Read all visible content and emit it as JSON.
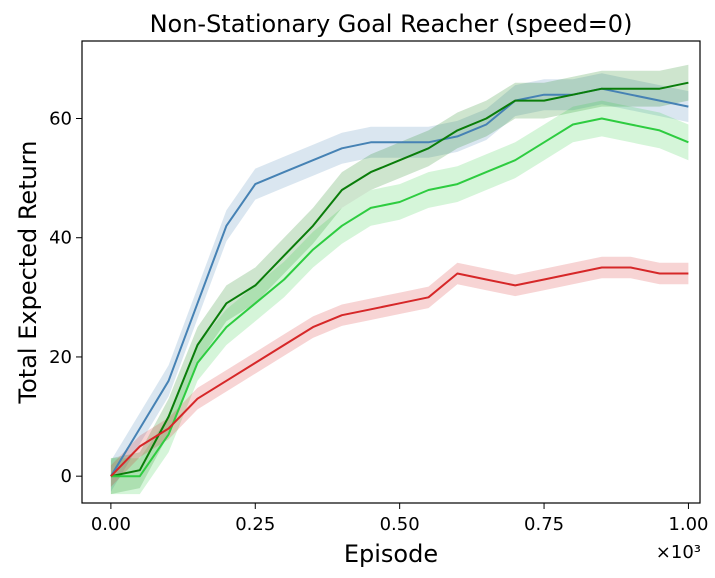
{
  "chart_data": {
    "type": "line",
    "title": "Non-Stationary Goal Reacher (speed=0)",
    "xlabel": "Episode",
    "ylabel": "Total Expected Return",
    "x_multiplier_label": "×10³",
    "xlim": [
      -0.05,
      1.02
    ],
    "ylim": [
      -4.5,
      73
    ],
    "xticks": [
      0.0,
      0.25,
      0.5,
      0.75,
      1.0
    ],
    "xtick_labels": [
      "0.00",
      "0.25",
      "0.50",
      "0.75",
      "1.00"
    ],
    "yticks": [
      0,
      20,
      40,
      60
    ],
    "ytick_labels": [
      "0",
      "20",
      "40",
      "60"
    ],
    "grid": false,
    "legend": "none",
    "x": [
      0.0,
      0.05,
      0.1,
      0.15,
      0.2,
      0.25,
      0.3,
      0.35,
      0.4,
      0.45,
      0.5,
      0.55,
      0.6,
      0.65,
      0.7,
      0.75,
      0.8,
      0.85,
      0.9,
      0.95,
      1.0
    ],
    "series": [
      {
        "color": "#4682b4",
        "band_width": 2.6,
        "values": [
          0,
          8,
          16,
          29,
          42,
          49,
          51,
          53,
          55,
          56,
          56,
          56,
          57,
          59,
          63,
          64,
          64,
          65,
          64,
          63,
          62
        ]
      },
      {
        "color": "#0a7d0a",
        "band_width": 3.0,
        "values": [
          0,
          1,
          10,
          22,
          29,
          32,
          37,
          42,
          48,
          51,
          53,
          55,
          58,
          60,
          63,
          63,
          64,
          65,
          65,
          65,
          66
        ]
      },
      {
        "color": "#2ecc40",
        "band_width": 3.0,
        "values": [
          0,
          0,
          7,
          19,
          25,
          29,
          33,
          38,
          42,
          45,
          46,
          48,
          49,
          51,
          53,
          56,
          59,
          60,
          59,
          58,
          56
        ]
      },
      {
        "color": "#d62728",
        "band_width": 1.8,
        "values": [
          0,
          5,
          8,
          13,
          16,
          19,
          22,
          25,
          27,
          28,
          29,
          30,
          34,
          33,
          32,
          33,
          34,
          35,
          35,
          34,
          34
        ]
      }
    ]
  }
}
